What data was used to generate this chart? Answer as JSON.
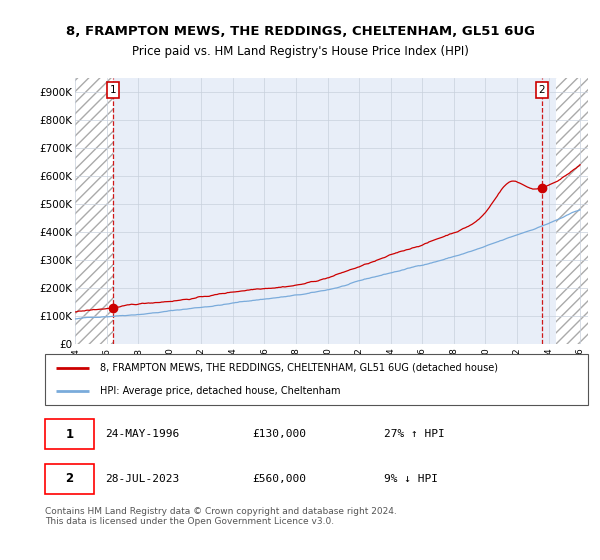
{
  "title_line1": "8, FRAMPTON MEWS, THE REDDINGS, CHELTENHAM, GL51 6UG",
  "title_line2": "Price paid vs. HM Land Registry's House Price Index (HPI)",
  "ylim": [
    0,
    950000
  ],
  "yticks": [
    0,
    100000,
    200000,
    300000,
    400000,
    500000,
    600000,
    700000,
    800000,
    900000
  ],
  "ytick_labels": [
    "£0",
    "£100K",
    "£200K",
    "£300K",
    "£400K",
    "£500K",
    "£600K",
    "£700K",
    "£800K",
    "£900K"
  ],
  "xlim_start": 1994.0,
  "xlim_end": 2026.5,
  "purchase1_x": 1996.39,
  "purchase1_y": 130000,
  "purchase2_x": 2023.57,
  "purchase2_y": 560000,
  "line_color_property": "#cc0000",
  "line_color_hpi": "#7aabdb",
  "legend_property": "8, FRAMPTON MEWS, THE REDDINGS, CHELTENHAM, GL51 6UG (detached house)",
  "legend_hpi": "HPI: Average price, detached house, Cheltenham",
  "annotation1_date": "24-MAY-1996",
  "annotation1_price": "£130,000",
  "annotation1_hpi": "27% ↑ HPI",
  "annotation2_date": "28-JUL-2023",
  "annotation2_price": "£560,000",
  "annotation2_hpi": "9% ↓ HPI",
  "footer": "Contains HM Land Registry data © Crown copyright and database right 2024.\nThis data is licensed under the Open Government Licence v3.0.",
  "background_color": "#ffffff",
  "plot_bg_color": "#e8eef8",
  "grid_color": "#c8d0dc"
}
